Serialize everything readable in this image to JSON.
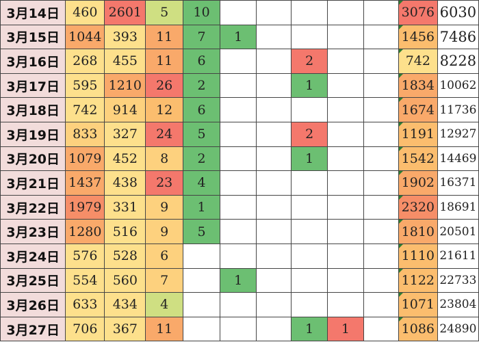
{
  "colors": {
    "date_bg": "#f2dcdb",
    "scale_red": "#f4786c",
    "scale_orange": "#f9a96a",
    "scale_yellow": "#fdd17e",
    "scale_green": "#6cbf72",
    "grid_line": "#444444"
  },
  "rows": [
    {
      "date": "3月14日",
      "v1": "460",
      "v2": "2601",
      "v3": "5",
      "v4": "10",
      "v5": "",
      "v6": "",
      "v7": "",
      "v8": "",
      "v9": "",
      "v10": "3076",
      "v11": "6030"
    },
    {
      "date": "3月15日",
      "v1": "1044",
      "v2": "393",
      "v3": "11",
      "v4": "7",
      "v5": "1",
      "v6": "",
      "v7": "",
      "v8": "",
      "v9": "",
      "v10": "1456",
      "v11": "7486"
    },
    {
      "date": "3月16日",
      "v1": "268",
      "v2": "455",
      "v3": "11",
      "v4": "6",
      "v5": "",
      "v6": "",
      "v7": "2",
      "v8": "",
      "v9": "",
      "v10": "742",
      "v11": "8228"
    },
    {
      "date": "3月17日",
      "v1": "595",
      "v2": "1210",
      "v3": "26",
      "v4": "2",
      "v5": "",
      "v6": "",
      "v7": "1",
      "v8": "",
      "v9": "",
      "v10": "1834",
      "v11": "10062"
    },
    {
      "date": "3月18日",
      "v1": "742",
      "v2": "914",
      "v3": "12",
      "v4": "6",
      "v5": "",
      "v6": "",
      "v7": "",
      "v8": "",
      "v9": "",
      "v10": "1674",
      "v11": "11736"
    },
    {
      "date": "3月19日",
      "v1": "833",
      "v2": "327",
      "v3": "24",
      "v4": "5",
      "v5": "",
      "v6": "",
      "v7": "2",
      "v8": "",
      "v9": "",
      "v10": "1191",
      "v11": "12927"
    },
    {
      "date": "3月20日",
      "v1": "1079",
      "v2": "452",
      "v3": "8",
      "v4": "2",
      "v5": "",
      "v6": "",
      "v7": "1",
      "v8": "",
      "v9": "",
      "v10": "1542",
      "v11": "14469"
    },
    {
      "date": "3月21日",
      "v1": "1437",
      "v2": "438",
      "v3": "23",
      "v4": "4",
      "v5": "",
      "v6": "",
      "v7": "",
      "v8": "",
      "v9": "",
      "v10": "1902",
      "v11": "16371"
    },
    {
      "date": "3月22日",
      "v1": "1979",
      "v2": "331",
      "v3": "9",
      "v4": "1",
      "v5": "",
      "v6": "",
      "v7": "",
      "v8": "",
      "v9": "",
      "v10": "2320",
      "v11": "18691"
    },
    {
      "date": "3月23日",
      "v1": "1280",
      "v2": "516",
      "v3": "9",
      "v4": "5",
      "v5": "",
      "v6": "",
      "v7": "",
      "v8": "",
      "v9": "",
      "v10": "1810",
      "v11": "20501"
    },
    {
      "date": "3月24日",
      "v1": "576",
      "v2": "528",
      "v3": "6",
      "v4": "",
      "v5": "",
      "v6": "",
      "v7": "",
      "v8": "",
      "v9": "",
      "v10": "1110",
      "v11": "21611"
    },
    {
      "date": "3月25日",
      "v1": "554",
      "v2": "560",
      "v3": "7",
      "v4": "",
      "v5": "1",
      "v6": "",
      "v7": "",
      "v8": "",
      "v9": "",
      "v10": "1122",
      "v11": "22733"
    },
    {
      "date": "3月26日",
      "v1": "633",
      "v2": "434",
      "v3": "4",
      "v4": "",
      "v5": "",
      "v6": "",
      "v7": "",
      "v8": "",
      "v9": "",
      "v10": "1071",
      "v11": "23804"
    },
    {
      "date": "3月27日",
      "v1": "706",
      "v2": "367",
      "v3": "11",
      "v4": "",
      "v5": "",
      "v6": "",
      "v7": "1",
      "v8": "1",
      "v9": "",
      "v10": "1086",
      "v11": "24890"
    }
  ]
}
